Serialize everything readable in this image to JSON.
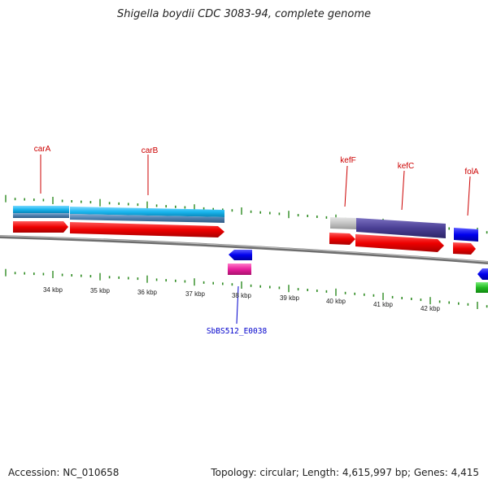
{
  "title": "Shigella boydii CDC 3083-94, complete genome",
  "footer": {
    "accession": "Accession: NC_010658",
    "summary": "Topology: circular; Length: 4,615,997 bp; Genes: 4,415"
  },
  "colors": {
    "backbone": "#808080",
    "tick": "#2e8b22",
    "gene_forward": "#e30000",
    "gene_reverse": "#0000ee",
    "cds_cyan": "#19b6ee",
    "cds_steel": "#4e7fae",
    "cds_grey": "#c4c4c4",
    "cds_purple": "#4a3f94",
    "misc_magenta": "#e8209c",
    "misc_green": "#22bb22",
    "gene_label": "#cc0000",
    "reverse_label": "#0000cc"
  },
  "scale": {
    "unit": "kbp",
    "labels": [
      "34 kbp",
      "35 kbp",
      "36 kbp",
      "37 kbp",
      "38 kbp",
      "39 kbp",
      "40 kbp",
      "41 kbp",
      "42 kbp"
    ]
  },
  "forward_genes": [
    {
      "name": "carA",
      "label_visible": true
    },
    {
      "name": "carB",
      "label_visible": true
    },
    {
      "name": "kefF",
      "label_visible": true
    },
    {
      "name": "kefC",
      "label_visible": true
    },
    {
      "name": "folA",
      "label_visible": true
    }
  ],
  "reverse_genes": [
    {
      "name": "SbBS512_E0038",
      "label_visible": true
    }
  ]
}
